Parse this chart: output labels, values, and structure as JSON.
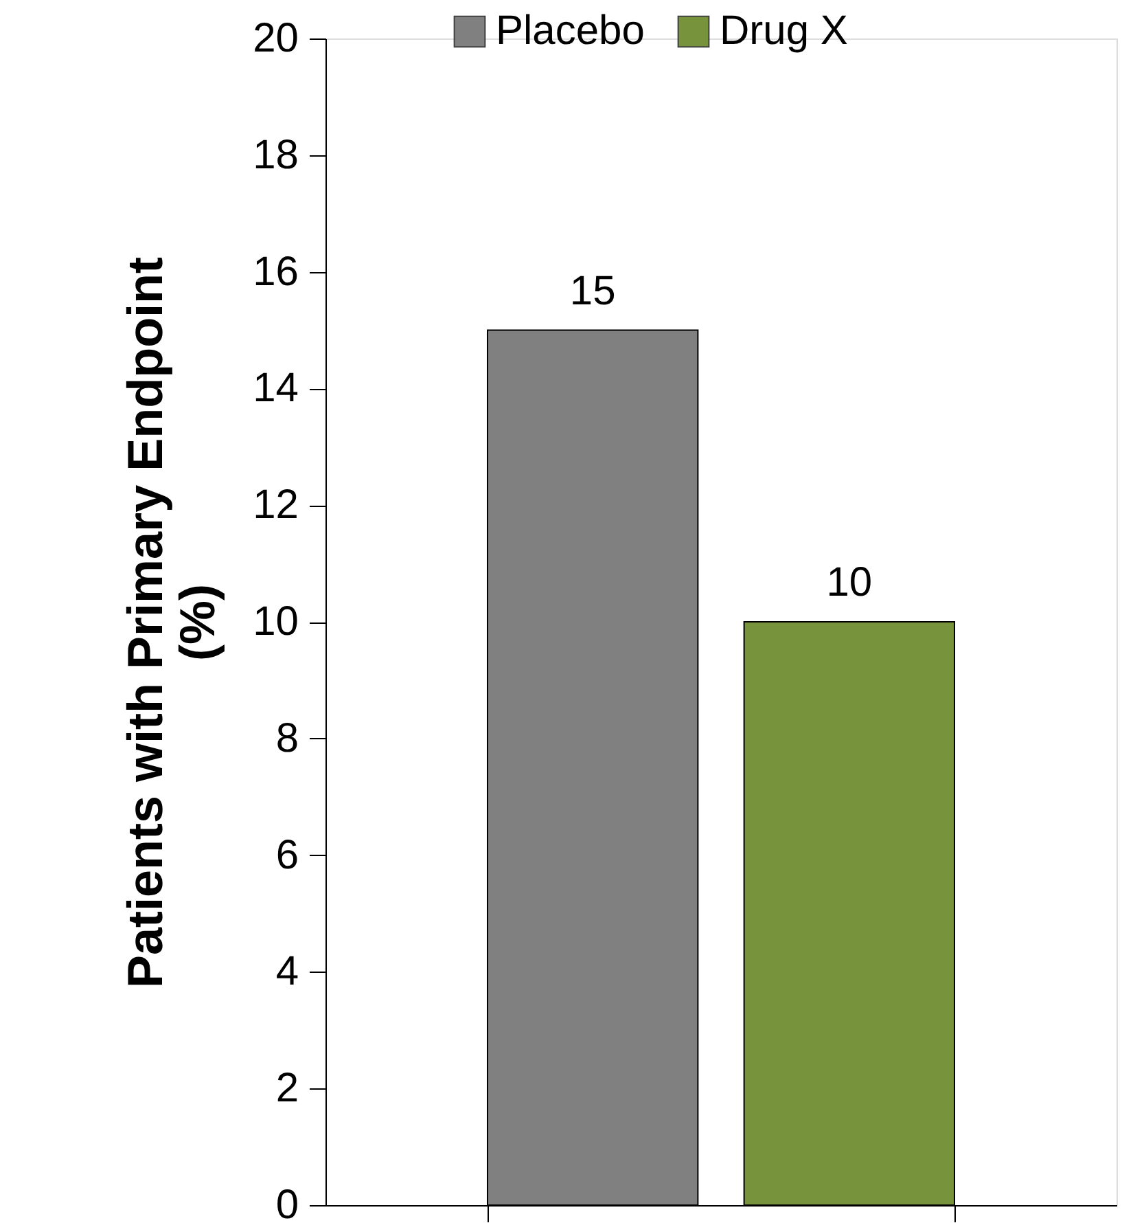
{
  "chart_data": {
    "type": "bar",
    "ylabel": "Patients with Primary Endpoint (%)",
    "categories": [
      null
    ],
    "series": [
      {
        "name": "Placebo",
        "color": "#808080",
        "values": [
          15
        ]
      },
      {
        "name": "Drug X",
        "color": "#77933c",
        "values": [
          10
        ]
      }
    ],
    "ylim": [
      0,
      20
    ],
    "yticks": [
      0,
      2,
      4,
      6,
      8,
      10,
      12,
      14,
      16,
      18,
      20
    ],
    "data_labels": true,
    "legend": "top",
    "grid": false
  }
}
